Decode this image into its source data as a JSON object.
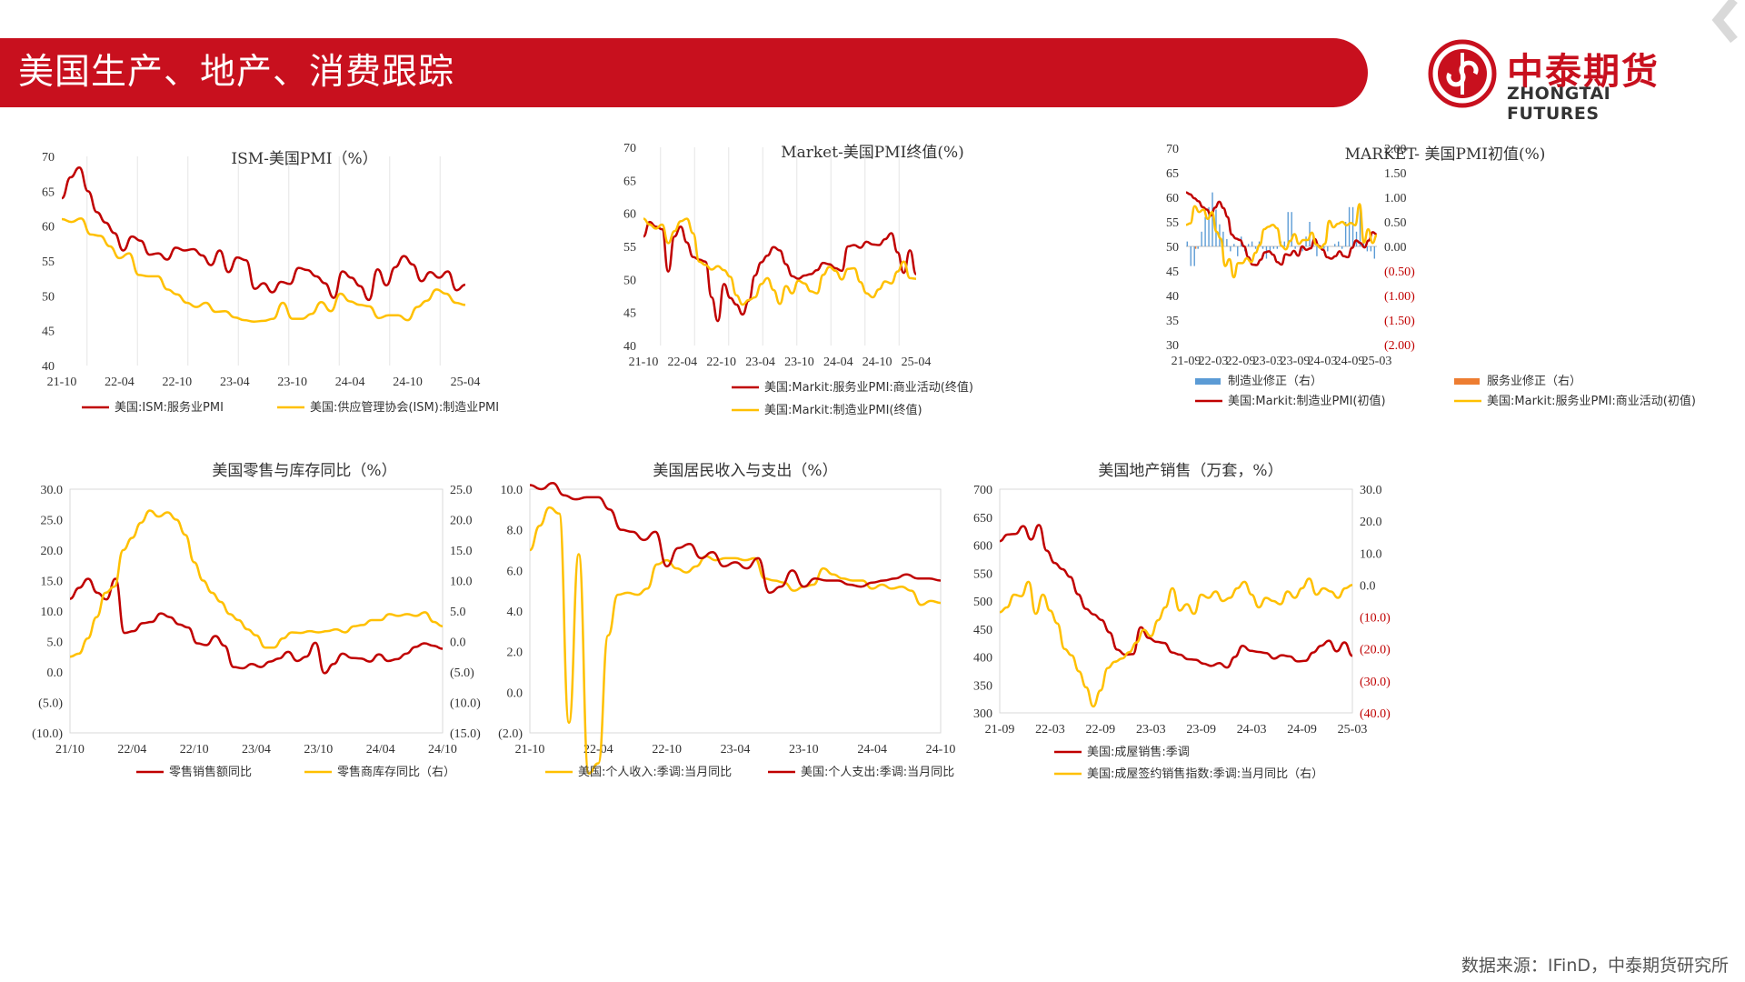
{
  "header": {
    "title": "美国生产、地产、消费跟踪"
  },
  "logo": {
    "cn": "中泰期货",
    "en": "ZHONGTAI FUTURES"
  },
  "source": "数据来源：IFinD，中泰期货研究所",
  "colors": {
    "red": "#c00000",
    "yellow": "#ffc000",
    "blue": "#5b9bd5",
    "orange": "#ed7d31",
    "brand": "#c8101e"
  },
  "chart_data": [
    {
      "type": "line",
      "title": "ISM-美国PMI（%）",
      "xticks": [
        "21-10",
        "22-04",
        "22-10",
        "23-04",
        "23-10",
        "24-04",
        "24-10",
        "25-04"
      ],
      "ylim": [
        40,
        70
      ],
      "yticks": [
        40,
        45,
        50,
        55,
        60,
        65,
        70
      ],
      "series": [
        {
          "name": "美国:ISM:服务业PMI",
          "color": "#c00000",
          "values": [
            64,
            67,
            68.4,
            65,
            62,
            60.5,
            59,
            56.5,
            58.5,
            57.9,
            55.9,
            56.1,
            55.2,
            56.9,
            56.5,
            56.7,
            55.8,
            54.4,
            56.5,
            53.4,
            55.5,
            55.1,
            51,
            51.8,
            50.5,
            52,
            51.7,
            54,
            53.7,
            52.8,
            51.8,
            49.7,
            53.5,
            52.6,
            51.4,
            49.4,
            53.8,
            51.5,
            54.1,
            55.7,
            54.5,
            52.1,
            53.4,
            52.6,
            53.5,
            50.8,
            51.6
          ]
        },
        {
          "name": "美国:供应管理协会(ISM):制造业PMI",
          "color": "#ffc000",
          "values": [
            61,
            60.6,
            61.1,
            58.8,
            58.6,
            57.1,
            55.4,
            56.1,
            53,
            52.8,
            52.8,
            50.9,
            50.2,
            49,
            48.4,
            49,
            47.7,
            47.8,
            46.9,
            46.5,
            46.3,
            46.4,
            46.7,
            49,
            46.7,
            46.7,
            47.4,
            49.1,
            47.8,
            50.3,
            49.2,
            48.7,
            48.5,
            46.8,
            47.2,
            47.2,
            46.5,
            48.4,
            49.3,
            50.9,
            50.3,
            49,
            48.7
          ]
        }
      ]
    },
    {
      "type": "line",
      "title": "Market-美国PMI终值(%)",
      "xticks": [
        "21-10",
        "22-04",
        "22-10",
        "23-04",
        "23-10",
        "24-04",
        "24-10",
        "25-04"
      ],
      "ylim": [
        40,
        70
      ],
      "yticks": [
        40,
        45,
        50,
        55,
        60,
        65,
        70
      ],
      "series": [
        {
          "name": "美国:Markit:服务业PMI:商业活动(终值)",
          "color": "#c00000",
          "values": [
            56.5,
            58.7,
            58,
            57.6,
            51.2,
            56.5,
            58,
            55.6,
            53.4,
            53,
            52.7,
            47.3,
            43.7,
            49.3,
            47.2,
            46.2,
            44.7,
            46.8,
            50.6,
            52.6,
            53.6,
            54.9,
            54.4,
            52.3,
            50.5,
            50.1,
            50.6,
            50.8,
            51.4,
            52.5,
            52.3,
            51.7,
            51.3,
            55,
            55.2,
            54.8,
            55.7,
            55.3,
            55.2,
            56.1,
            57,
            54.1,
            51,
            54.4,
            50.8
          ]
        },
        {
          "name": "美国:Markit:制造业PMI(终值)",
          "color": "#ffc000",
          "values": [
            59.2,
            58.3,
            57.7,
            58.3,
            55.5,
            57.3,
            58.8,
            59.2,
            57,
            52.7,
            52.2,
            51.5,
            52,
            51.4,
            50.4,
            47.6,
            46.2,
            46.9,
            47.3,
            49.3,
            50.2,
            48.4,
            46.3,
            49,
            47.9,
            49.8,
            49.4,
            48.2,
            47.9,
            50.7,
            51.9,
            51.3,
            50,
            51.6,
            51.7,
            49.6,
            47.9,
            47.3,
            48.5,
            49.7,
            49.4,
            51.2,
            52.7,
            50.2,
            50.1
          ]
        }
      ]
    },
    {
      "type": "bar+line",
      "title": "MARKET- 美国PMI初值(%)",
      "xticks": [
        "21-09",
        "22-03",
        "22-09",
        "23-03",
        "23-09",
        "24-03",
        "24-09",
        "25-03"
      ],
      "ylim": [
        30,
        70
      ],
      "yticks": [
        30,
        35,
        40,
        45,
        50,
        55,
        60,
        65,
        70
      ],
      "y2lim": [
        -2,
        2
      ],
      "y2ticks": [
        "2.00",
        "1.50",
        "1.00",
        "0.50",
        "0.00",
        "(0.50)",
        "(1.00)",
        "(1.50)",
        "(2.00)"
      ],
      "series": [
        {
          "name": "制造业修正（右）",
          "kind": "bar",
          "axis": "right",
          "color": "#5b9bd5",
          "values": [
            0.1,
            -0.4,
            -0.4,
            -0.05,
            0.3,
            0.6,
            0.8,
            1.1,
            0.75,
            0.45,
            0.3,
            0.15,
            -0.1,
            0.05,
            -0.2,
            0.2,
            -0.1,
            0.05,
            0.1,
            -0.05,
            0.1,
            -0.05,
            -0.25,
            -0.1,
            -0.05,
            -0.05,
            0.1,
            0.1,
            0.7,
            0.7,
            -0.05,
            0.0,
            -0.1,
            0.2,
            0.5,
            0.25,
            -0.2,
            0.0,
            -0.05,
            -0.1,
            0.0,
            0.05,
            0.1,
            -0.05,
            0.5,
            0.8,
            0.8,
            0.3,
            0.8,
            0.1,
            -0.1,
            -0.1,
            -0.25
          ]
        },
        {
          "name": "服务业修正（右）",
          "kind": "bar",
          "axis": "right",
          "color": "#ed7d31",
          "values": [
            0.0,
            0.0,
            -0.05,
            0.0,
            0.0,
            0.0,
            0.0,
            0.0,
            0.0,
            0.0,
            0.0,
            0.0,
            0.0,
            0.0,
            0.0,
            0.0,
            0.0,
            0.0,
            0.0,
            0.0,
            0.0,
            0.0,
            0.0,
            0.0,
            0.0,
            0.0,
            0.0,
            0.0,
            0.0,
            0.0,
            0.0,
            0.0,
            0.0,
            0.0,
            0.0,
            0.0,
            0.0,
            0.0,
            0.0,
            0.0,
            0.0,
            0.0,
            0.0,
            0.0,
            0.0,
            0.0,
            0.0,
            0.0,
            0.0,
            0.0,
            0.0,
            0.0,
            0.0
          ]
        },
        {
          "name": "美国:Markit:制造业PMI(初值)",
          "kind": "line",
          "axis": "left",
          "color": "#c00000",
          "values": [
            61,
            60.6,
            59.8,
            59.2,
            58,
            57.5,
            56.3,
            57.9,
            59.1,
            57.8,
            56,
            52.4,
            51.6,
            51.3,
            50,
            47.8,
            46.3,
            46.2,
            47.3,
            48.8,
            49,
            48.3,
            46.8,
            46.3,
            48.4,
            48.2,
            49.1,
            48.1,
            50,
            49.3,
            49.6,
            51.5,
            50.1,
            49.3,
            47.8,
            47.5,
            48,
            49,
            48,
            47.8,
            49.7,
            51.2,
            50.7,
            49.8,
            51.2,
            52.9,
            52.4
          ]
        },
        {
          "name": "美国:Markit:服务业PMI:商业活动(初值)",
          "kind": "line",
          "axis": "left",
          "color": "#ffc000",
          "values": [
            54.4,
            54.7,
            58.2,
            57,
            57.5,
            55.6,
            57,
            53,
            51.6,
            46,
            47.4,
            43.7,
            46.6,
            46.6,
            47.6,
            46.8,
            48.7,
            50.3,
            53.5,
            54,
            54.4,
            53.7,
            50.1,
            49.4,
            51.1,
            52.5,
            50.5,
            51.3,
            51.3,
            52.8,
            50.4,
            49.7,
            50.5,
            55.2,
            53.9,
            54.6,
            55,
            54.3,
            54.8,
            54.3,
            58.6,
            50.8,
            53.5,
            50.7,
            52.3
          ]
        }
      ]
    },
    {
      "type": "line",
      "title": "美国零售与库存同比（%）",
      "xticks": [
        "21/10",
        "22/04",
        "22/10",
        "23/04",
        "23/10",
        "24/04",
        "24/10"
      ],
      "ylim": [
        -10,
        30
      ],
      "yticks": [
        "(10.0)",
        "(5.0)",
        "0.0",
        "5.0",
        "10.0",
        "15.0",
        "20.0",
        "25.0",
        "30.0"
      ],
      "y2lim": [
        -15,
        25
      ],
      "y2ticks": [
        "(15.0)",
        "(10.0)",
        "(5.0)",
        "0.0",
        "5.0",
        "10.0",
        "15.0",
        "20.0",
        "25.0"
      ],
      "series": [
        {
          "name": "零售销售额同比",
          "axis": "left",
          "color": "#c00000",
          "values": [
            12,
            13.8,
            15.3,
            13,
            11.9,
            15.3,
            6.4,
            6.7,
            8,
            8.2,
            9.6,
            9,
            7.8,
            7.3,
            4.7,
            4.4,
            5.9,
            4.3,
            0.8,
            0.6,
            1.3,
            0.8,
            1.7,
            2.2,
            3.3,
            1.8,
            2.5,
            4.8,
            -0.2,
            1.3,
            3,
            2.3,
            2.2,
            1.7,
            2.9,
            1.8,
            2.1,
            3,
            4.1,
            4.7,
            4.3,
            3.8
          ]
        },
        {
          "name": "零售商库存同比（右）",
          "axis": "right",
          "color": "#ffc000",
          "values": [
            -2.5,
            -2,
            0.5,
            4,
            8,
            9,
            15,
            17,
            19.5,
            21.5,
            20.5,
            21.2,
            20,
            17.5,
            13,
            10,
            8,
            6.5,
            4.5,
            3.5,
            2,
            1,
            -1,
            -1,
            0.5,
            1.5,
            1.4,
            1.7,
            1.5,
            1.7,
            2,
            1.5,
            2.5,
            2.7,
            3.5,
            3.5,
            4.5,
            4.2,
            4.5,
            4.2,
            4.8,
            3.2,
            2.5
          ]
        }
      ]
    },
    {
      "type": "line",
      "title": "美国居民收入与支出（%）",
      "xticks": [
        "21-10",
        "22-04",
        "22-10",
        "23-04",
        "23-10",
        "24-04",
        "24-10"
      ],
      "ylim": [
        -2,
        10
      ],
      "yticks": [
        "(2.0)",
        "0.0",
        "2.0",
        "4.0",
        "6.0",
        "8.0",
        "10.0"
      ],
      "series": [
        {
          "name": "美国:个人收入:季调:当月同比",
          "color": "#ffc000",
          "values": [
            7,
            8.2,
            9.1,
            8.8,
            -1.5,
            6.8,
            -4,
            -3.5,
            2.8,
            4.8,
            4.9,
            4.8,
            5.1,
            6.3,
            6.5,
            6.1,
            5.9,
            6.2,
            6.7,
            6.5,
            6.6,
            6.6,
            6.5,
            6.6,
            5.6,
            5.5,
            5.4,
            5,
            5.2,
            5.3,
            6.1,
            5.8,
            5.6,
            5.5,
            5.5,
            5.1,
            5.3,
            5.1,
            5.2,
            5,
            4.3,
            4.5,
            4.4
          ]
        },
        {
          "name": "美国:个人支出:季调:当月同比",
          "color": "#c00000",
          "values": [
            10.2,
            10,
            10.3,
            9.7,
            9.5,
            9.6,
            9.6,
            9,
            8,
            7.9,
            7.5,
            7.9,
            6.2,
            7.1,
            7.3,
            6.6,
            6.9,
            6.2,
            6.4,
            6.1,
            6.6,
            4.9,
            5.2,
            6,
            5.2,
            5.6,
            5.5,
            5.5,
            5.3,
            5.2,
            5.4,
            5.5,
            5.6,
            5.8,
            5.6,
            5.6,
            5.5
          ]
        }
      ]
    },
    {
      "type": "line",
      "title": "美国地产销售（万套，%）",
      "xticks": [
        "21-09",
        "22-03",
        "22-09",
        "23-03",
        "23-09",
        "24-03",
        "24-09",
        "25-03"
      ],
      "ylim": [
        300,
        700
      ],
      "yticks": [
        300,
        350,
        400,
        450,
        500,
        550,
        600,
        650,
        700
      ],
      "y2lim": [
        -40,
        30
      ],
      "y2ticks": [
        "(40.0)",
        "(30.0)",
        "(20.0)",
        "(10.0)",
        "0.0",
        "10.0",
        "20.0",
        "30.0"
      ],
      "series": [
        {
          "name": "美国:成屋销售:季调",
          "axis": "left",
          "color": "#c00000",
          "values": [
            607,
            619,
            620,
            634,
            610,
            636,
            590,
            568,
            557,
            543,
            512,
            486,
            476,
            466,
            444,
            413,
            404,
            405,
            453,
            434,
            427,
            425,
            408,
            404,
            396,
            395,
            388,
            384,
            389,
            381,
            400,
            420,
            411,
            409,
            407,
            397,
            403,
            401,
            392,
            393,
            408,
            420,
            429,
            410,
            426,
            402
          ]
        },
        {
          "name": "美国:成屋签约销售指数:季调:当月同比（右）",
          "axis": "right",
          "color": "#ffc000",
          "values": [
            -8.5,
            -7,
            -3,
            -3.5,
            1,
            -9,
            -3,
            -8,
            -12,
            -20,
            -22,
            -27,
            -32,
            -38,
            -33,
            -26,
            -24,
            -23,
            -21,
            -18,
            -14,
            -16,
            -11,
            -7,
            -1,
            -8,
            -6,
            -9,
            -3,
            -4,
            -2,
            -5,
            -4,
            -1,
            1,
            -3,
            -7,
            -4,
            -5,
            -6,
            -2,
            -4,
            -1,
            2,
            -3,
            -1,
            -2,
            -4,
            -1,
            0
          ]
        }
      ]
    }
  ]
}
